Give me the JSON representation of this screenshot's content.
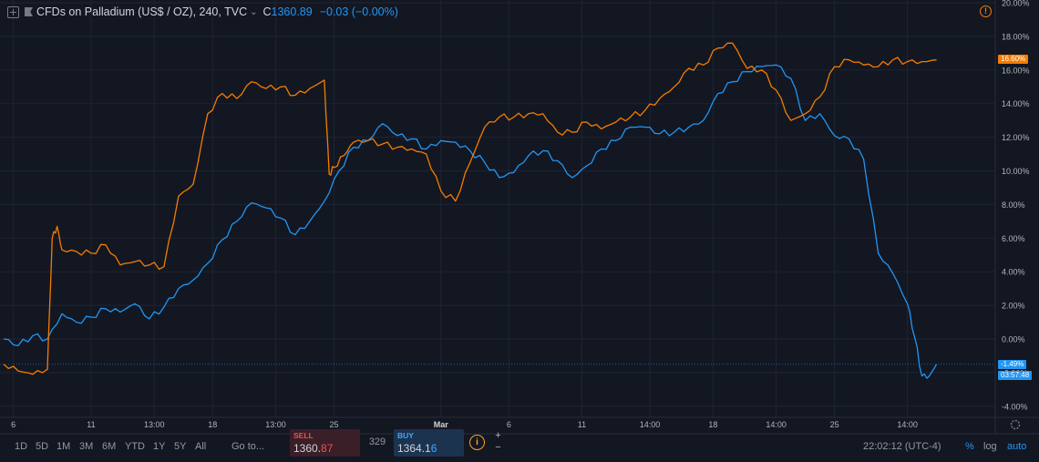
{
  "header": {
    "symbol": "CFDs on Palladium (US$ / OZ), 240, TVC",
    "close_label": "C",
    "close_value": "1360.89",
    "change": "−0.03 (−0.00%)"
  },
  "toolbar": {
    "ranges": [
      "1D",
      "5D",
      "1M",
      "3M",
      "6M",
      "YTD",
      "1Y",
      "5Y",
      "All"
    ],
    "goto": "Go to...",
    "sell_label": "SELL",
    "sell_price_main": "1360.",
    "sell_price_frac": "87",
    "spread": "329",
    "buy_label": "BUY",
    "buy_price_main": "1364.1",
    "buy_price_frac": "6",
    "plus": "+",
    "minus": "−",
    "time": "22:02:12 (UTC-4)",
    "percent": "%",
    "log": "log",
    "auto": "auto"
  },
  "colors": {
    "background": "#131722",
    "blue": "#2196f3",
    "orange": "#f57c00",
    "grid": "#1f2433",
    "text": "#b2b5be"
  },
  "chart_data": {
    "type": "line",
    "y_tick_labels": [
      "20.00%",
      "18.00%",
      "16.00%",
      "14.00%",
      "12.00%",
      "10.00%",
      "8.00%",
      "6.00%",
      "4.00%",
      "2.00%",
      "0.00%",
      "-2.00%",
      "-4.00%"
    ],
    "y_ticks": [
      20,
      18,
      16,
      14,
      12,
      10,
      8,
      6,
      4,
      2,
      0,
      -2,
      -4
    ],
    "ylim": [
      -4.6,
      20
    ],
    "xlim": [
      0,
      200
    ],
    "x_tick_labels": [
      "6",
      "11",
      "13:00",
      "18",
      "13:00",
      "25",
      "Mar",
      "6",
      "11",
      "14:00",
      "18",
      "14:00",
      "25",
      "14:00"
    ],
    "x_ticks": [
      2,
      18,
      31,
      43,
      56,
      68,
      90,
      104,
      119,
      133,
      146,
      159,
      171,
      186
    ],
    "last_labels": {
      "orange": "16.60%",
      "blue": "-1.49%",
      "countdown": "03:57:48"
    },
    "series": [
      {
        "color": "#2196f3",
        "x": [
          0,
          3,
          6,
          9,
          12,
          15,
          18,
          21,
          24,
          27,
          30,
          33,
          36,
          39,
          42,
          45,
          48,
          51,
          54,
          57,
          60,
          63,
          66,
          69,
          72,
          75,
          78,
          81,
          84,
          87,
          90,
          93,
          96,
          99,
          102,
          105,
          108,
          111,
          114,
          117,
          120,
          123,
          126,
          129,
          132,
          135,
          138,
          141,
          144,
          147,
          150,
          153,
          156,
          159,
          162,
          165,
          168,
          171,
          174,
          177,
          180,
          183,
          186,
          187.5,
          189,
          190.5,
          192
        ],
        "y": [
          0.0,
          -0.4,
          0.2,
          0.0,
          1.5,
          1.0,
          1.3,
          1.8,
          1.6,
          2.1,
          1.2,
          1.9,
          3.0,
          3.5,
          4.5,
          5.9,
          7.0,
          8.1,
          7.8,
          7.2,
          6.2,
          7.0,
          8.2,
          10.0,
          11.4,
          11.8,
          12.8,
          12.1,
          11.9,
          11.3,
          11.8,
          11.7,
          11.2,
          10.5,
          9.6,
          9.9,
          10.9,
          11.2,
          10.6,
          9.6,
          10.3,
          11.3,
          11.8,
          12.6,
          12.6,
          12.2,
          12.3,
          12.6,
          13.0,
          14.6,
          15.3,
          15.9,
          16.2,
          16.3,
          15.5,
          13.0,
          13.4,
          12.1,
          11.9,
          10.7,
          5.1,
          3.9,
          2.1,
          0.1,
          -2.2,
          -2.2,
          -1.5
        ]
      },
      {
        "color": "#f57c00",
        "x": [
          0,
          3,
          6,
          9,
          10,
          11,
          12,
          15,
          18,
          21,
          24,
          27,
          30,
          33,
          36,
          39,
          42,
          45,
          48,
          51,
          54,
          57,
          60,
          63,
          66,
          67,
          68,
          70,
          72,
          75,
          78,
          81,
          84,
          87,
          90,
          93,
          96,
          99,
          102,
          105,
          108,
          111,
          114,
          117,
          120,
          123,
          126,
          129,
          132,
          135,
          138,
          141,
          144,
          147,
          150,
          153,
          156,
          159,
          162,
          165,
          168,
          171,
          174,
          177,
          180,
          183,
          186,
          189,
          192
        ],
        "y": [
          -1.5,
          -1.9,
          -2.1,
          -1.8,
          6.0,
          6.7,
          5.3,
          5.2,
          5.1,
          5.6,
          4.4,
          4.6,
          4.4,
          4.3,
          8.5,
          9.2,
          13.4,
          14.6,
          14.3,
          15.3,
          14.9,
          15.0,
          14.5,
          14.9,
          15.4,
          9.8,
          10.2,
          10.9,
          11.7,
          11.8,
          11.6,
          11.4,
          11.3,
          11.0,
          8.8,
          8.2,
          10.5,
          12.6,
          13.2,
          13.2,
          13.4,
          13.4,
          12.3,
          12.3,
          12.9,
          12.5,
          12.9,
          13.2,
          13.6,
          14.3,
          15.0,
          16.1,
          16.3,
          17.3,
          17.6,
          16.1,
          16.0,
          14.8,
          13.0,
          13.4,
          14.4,
          16.2,
          16.6,
          16.3,
          16.2,
          16.6,
          16.5,
          16.5,
          16.6
        ]
      }
    ]
  }
}
